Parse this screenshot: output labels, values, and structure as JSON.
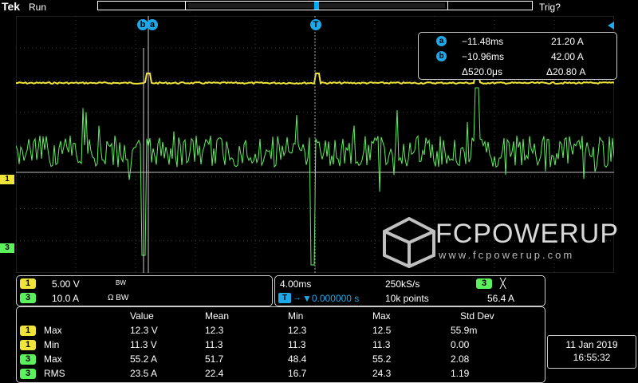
{
  "top": {
    "brand": "Tek",
    "run_state": "Run",
    "trigger_state": "Trig?"
  },
  "colors": {
    "ch1": "#f0e43a",
    "ch3": "#5cf05c",
    "cursor": "#1ea8e8",
    "grid": "#3a3a3a"
  },
  "markers": {
    "cursor_pair": "ba",
    "trigger_marker": "T",
    "ch1_marker": "1",
    "ch3_marker": "3"
  },
  "cursor_readout": {
    "a_label": "a",
    "a_time": "−11.48ms",
    "a_value": "21.20 A",
    "b_label": "b",
    "b_time": "−10.96ms",
    "b_value": "42.00 A",
    "delta_time": "Δ520.0μs",
    "delta_value": "Δ20.80 A"
  },
  "channels": [
    {
      "id": "1",
      "scale": "5.00 V",
      "flags": "BW"
    },
    {
      "id": "3",
      "scale": "10.0 A",
      "flags": "Ω BW"
    }
  ],
  "acquisition": {
    "timebase": "4.00ms",
    "sample_rate": "250kS/s",
    "trigger_position": "▼0.000000 s",
    "record_length": "10k points",
    "trigger_source": "3",
    "trigger_symbol": "╳",
    "trigger_level": "56.4 A"
  },
  "measurements": {
    "headers": [
      "Value",
      "Mean",
      "Min",
      "Max",
      "Std Dev"
    ],
    "rows": [
      {
        "ch": "1",
        "name": "Max",
        "value": "12.3 V",
        "mean": "12.3",
        "min": "12.3",
        "max": "12.5",
        "std": "55.9m"
      },
      {
        "ch": "1",
        "name": "Min",
        "value": "11.3 V",
        "mean": "11.3",
        "min": "11.3",
        "max": "11.3",
        "std": "0.00"
      },
      {
        "ch": "3",
        "name": "Max",
        "value": "55.2 A",
        "mean": "51.7",
        "min": "48.4",
        "max": "55.2",
        "std": "2.08"
      },
      {
        "ch": "3",
        "name": "RMS",
        "value": "23.5 A",
        "mean": "22.4",
        "min": "16.7",
        "max": "24.3",
        "std": "1.19"
      }
    ]
  },
  "datetime": {
    "date": "11 Jan  2019",
    "time": "16:55:32"
  },
  "watermark": {
    "name": "FCPOWERUP",
    "url": "www.fcpowerup.com"
  }
}
